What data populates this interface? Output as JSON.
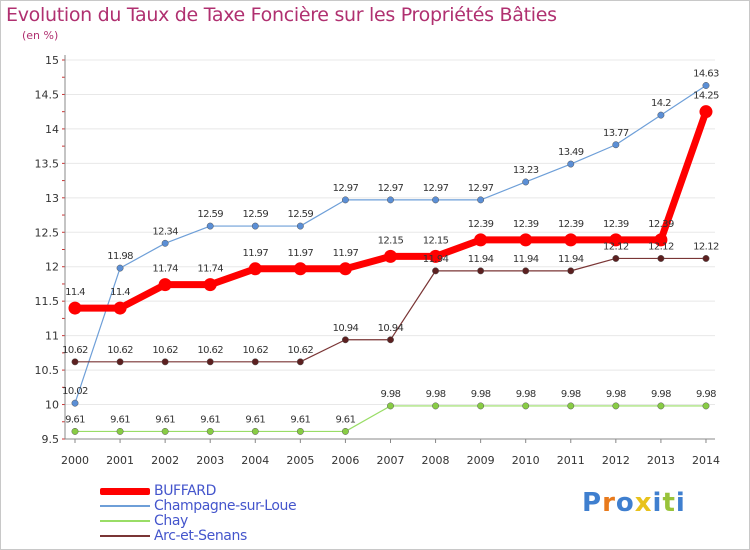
{
  "title": "Evolution du Taux de Taxe Foncière sur les Propriétés Bâties",
  "subtitle": "(en %)",
  "logo": "Proxiti",
  "colors": {
    "title": "#b03070",
    "legend_text": "#4455cc",
    "grid": "#e8e8e8",
    "axis": "#888888",
    "axis_marks": "#cc3333"
  },
  "chart_data": {
    "type": "line",
    "title": "Evolution du Taux de Taxe Foncière sur les Propriétés Bâties",
    "ylabel": "(en %)",
    "xlabel": "",
    "ylim": [
      9.5,
      15
    ],
    "yticks": [
      "9.5",
      "10",
      "10.5",
      "11",
      "11.5",
      "12",
      "12.5",
      "13",
      "13.5",
      "14",
      "14.5",
      "15"
    ],
    "x": [
      "2000",
      "2001",
      "2002",
      "2003",
      "2004",
      "2005",
      "2006",
      "2007",
      "2008",
      "2009",
      "2010",
      "2011",
      "2012",
      "2013",
      "2014"
    ],
    "grid": true,
    "legend_position": "bottom-left",
    "series": [
      {
        "name": "Champagne-sur-Loue",
        "color": "#6e9fd8",
        "marker_fill": "#5b8fd6",
        "line_width": 1.2,
        "marker_r": 3.2,
        "values": [
          10.02,
          11.98,
          12.34,
          12.59,
          12.59,
          12.59,
          12.97,
          12.97,
          12.97,
          12.97,
          13.23,
          13.49,
          13.77,
          14.2,
          14.63
        ],
        "labels": [
          "10.02",
          "11.98",
          "12.34",
          "12.59",
          "12.59",
          "12.59",
          "12.97",
          "12.97",
          "12.97",
          "12.97",
          "13.23",
          "13.49",
          "13.77",
          "14.2",
          "14.63"
        ]
      },
      {
        "name": "Chay",
        "color": "#99dd66",
        "marker_fill": "#88cc44",
        "line_width": 1.2,
        "marker_r": 3.2,
        "values": [
          9.61,
          9.61,
          9.61,
          9.61,
          9.61,
          9.61,
          9.61,
          9.98,
          9.98,
          9.98,
          9.98,
          9.98,
          9.98,
          9.98,
          9.98
        ],
        "labels": [
          "9.61",
          "9.61",
          "9.61",
          "9.61",
          "9.61",
          "9.61",
          "9.61",
          "9.98",
          "9.98",
          "9.98",
          "9.98",
          "9.98",
          "9.98",
          "9.98",
          "9.98"
        ]
      },
      {
        "name": "Arc-et-Senans",
        "color": "#7a3535",
        "marker_fill": "#5c2020",
        "line_width": 1.2,
        "marker_r": 3.2,
        "values": [
          10.62,
          10.62,
          10.62,
          10.62,
          10.62,
          10.62,
          10.94,
          10.94,
          11.94,
          11.94,
          11.94,
          11.94,
          12.12,
          12.12,
          12.12
        ],
        "labels": [
          "10.62",
          "10.62",
          "10.62",
          "10.62",
          "10.62",
          "10.62",
          "10.94",
          "10.94",
          "11.94",
          "11.94",
          "11.94",
          "11.94",
          "12.12",
          "12.12",
          "12.12"
        ]
      },
      {
        "name": "BUFFARD",
        "color": "#ff0000",
        "marker_fill": "#ff0000",
        "line_width": 7,
        "marker_r": 6.5,
        "values": [
          11.4,
          11.4,
          11.74,
          11.74,
          11.97,
          11.97,
          11.97,
          12.15,
          12.15,
          12.39,
          12.39,
          12.39,
          12.39,
          12.39,
          14.25
        ],
        "labels": [
          "11.4",
          "11.4",
          "11.74",
          "11.74",
          "11.97",
          "11.97",
          "11.97",
          "12.15",
          "12.15",
          "12.39",
          "12.39",
          "12.39",
          "12.39",
          "12.39",
          "14.25"
        ]
      }
    ]
  },
  "legend": [
    {
      "name": "BUFFARD",
      "color": "#ff0000",
      "thickness": 7
    },
    {
      "name": "Champagne-sur-Loue",
      "color": "#6e9fd8",
      "thickness": 2
    },
    {
      "name": "Chay",
      "color": "#99dd66",
      "thickness": 2
    },
    {
      "name": "Arc-et-Senans",
      "color": "#7a3535",
      "thickness": 2
    }
  ]
}
